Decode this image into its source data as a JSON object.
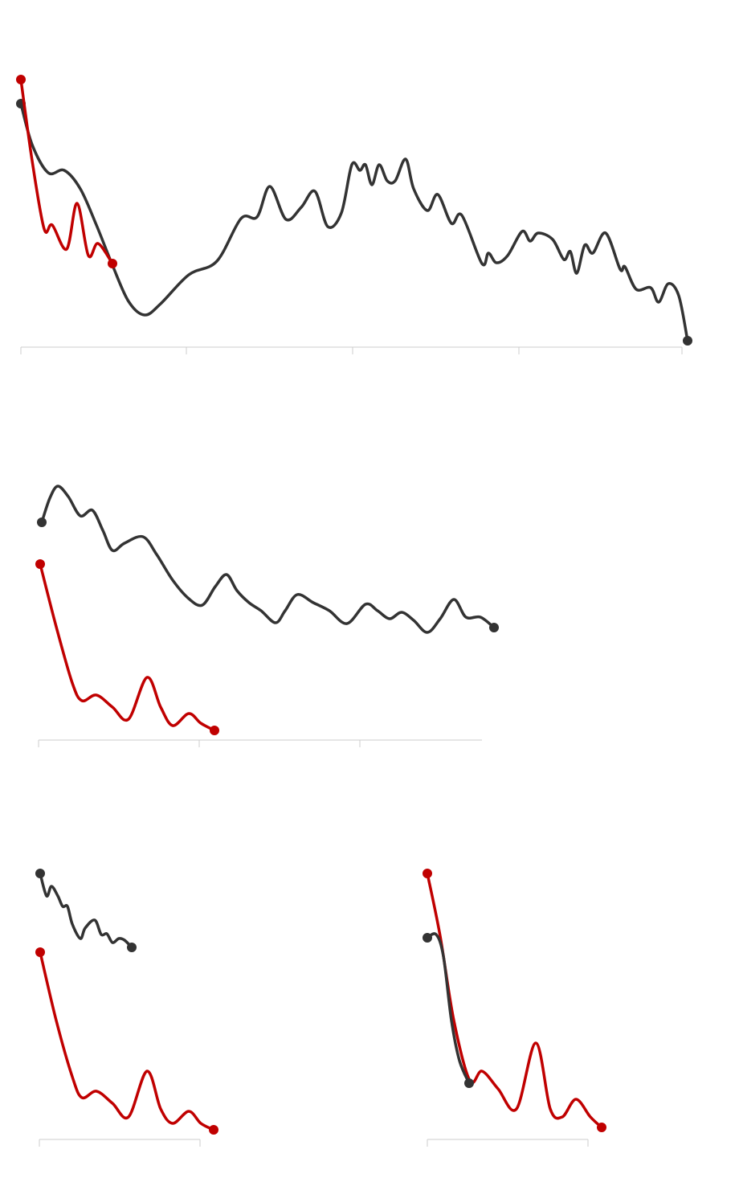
{
  "chart_data": [
    {
      "type": "line",
      "xlim": [
        0,
        823
      ],
      "xticks": [
        0,
        206,
        413,
        620,
        823
      ],
      "ylim": [
        0,
        342
      ],
      "series": [
        {
          "color": "#333333",
          "x": [
            0,
            14,
            34,
            54,
            74,
            94,
            114,
            134,
            154,
            174,
            209,
            244,
            274,
            294,
            310,
            330,
            349,
            366,
            382,
            399,
            412,
            422,
            429,
            437,
            446,
            456,
            466,
            479,
            489,
            506,
            519,
            536,
            549,
            574,
            582,
            592,
            606,
            624,
            634,
            644,
            662,
            676,
            684,
            692,
            702,
            712,
            728,
            746,
            752,
            766,
            784,
            794,
            806,
            819,
            830
          ],
          "values": [
            303,
            252,
            217,
            220,
            197,
            152,
            102,
            57,
            40,
            54,
            90,
            107,
            160,
            162,
            200,
            159,
            174,
            194,
            150,
            167,
            227,
            220,
            227,
            202,
            227,
            207,
            207,
            234,
            197,
            170,
            190,
            154,
            164,
            104,
            117,
            105,
            114,
            144,
            132,
            142,
            134,
            109,
            119,
            92,
            127,
            117,
            142,
            97,
            100,
            72,
            74,
            56,
            79,
            64,
            8
          ]
        },
        {
          "color": "#c00000",
          "x": [
            0,
            14,
            29,
            39,
            57,
            70,
            84,
            96,
            114
          ],
          "values": [
            333,
            232,
            147,
            152,
            122,
            179,
            114,
            129,
            104
          ]
        }
      ]
    },
    {
      "type": "line",
      "xlim": [
        0,
        552
      ],
      "xticks": [
        0,
        200,
        400
      ],
      "ylim": [
        0,
        330
      ],
      "series": [
        {
          "color": "#333333",
          "x": [
            4,
            14,
            24,
            37,
            52,
            67,
            80,
            92,
            107,
            130,
            147,
            167,
            187,
            204,
            220,
            234,
            247,
            262,
            277,
            295,
            307,
            322,
            342,
            362,
            384,
            407,
            422,
            437,
            452,
            467,
            484,
            500,
            517,
            532,
            550,
            567
          ],
          "values": [
            271,
            301,
            316,
            303,
            279,
            286,
            261,
            236,
            245,
            253,
            231,
            199,
            176,
            168,
            191,
            206,
            186,
            171,
            161,
            146,
            161,
            181,
            171,
            161,
            145,
            169,
            161,
            151,
            159,
            149,
            134,
            151,
            175,
            153,
            153,
            140
          ]
        },
        {
          "color": "#c00000",
          "x": [
            2,
            22,
            42,
            54,
            72,
            92,
            112,
            135,
            152,
            167,
            187,
            202,
            219
          ],
          "values": [
            219,
            141,
            71,
            49,
            56,
            41,
            26,
            78,
            41,
            18,
            33,
            21,
            12
          ]
        }
      ]
    },
    {
      "type": "line",
      "xlim": [
        0,
        200
      ],
      "xticks": [
        0,
        200
      ],
      "ylim": [
        0,
        340
      ],
      "series": [
        {
          "color": "#333333",
          "x": [
            1,
            9,
            15,
            23,
            29,
            35,
            41,
            51,
            57,
            69,
            77,
            84,
            91,
            99,
            106,
            115
          ],
          "values": [
            331,
            303,
            315,
            303,
            290,
            290,
            268,
            250,
            263,
            273,
            255,
            256,
            245,
            250,
            248,
            239
          ]
        },
        {
          "color": "#c00000",
          "x": [
            1,
            21,
            41,
            53,
            71,
            91,
            111,
            134,
            151,
            166,
            186,
            201,
            217
          ],
          "values": [
            233,
            148,
            78,
            52,
            60,
            45,
            28,
            85,
            38,
            20,
            35,
            20,
            12
          ]
        }
      ]
    },
    {
      "type": "line",
      "xlim": [
        0,
        200
      ],
      "xticks": [
        0,
        200
      ],
      "ylim": [
        0,
        340
      ],
      "series": [
        {
          "color": "#c00000",
          "x": [
            0,
            16,
            33,
            53,
            68,
            88,
            111,
            135,
            153,
            168,
            185,
            203,
            217
          ],
          "values": [
            331,
            253,
            148,
            73,
            85,
            63,
            38,
            120,
            38,
            28,
            50,
            28,
            15
          ]
        },
        {
          "color": "#333333",
          "x": [
            0,
            11,
            20,
            30,
            40,
            52
          ],
          "values": [
            251,
            255,
            228,
            148,
            98,
            70
          ]
        }
      ]
    }
  ]
}
